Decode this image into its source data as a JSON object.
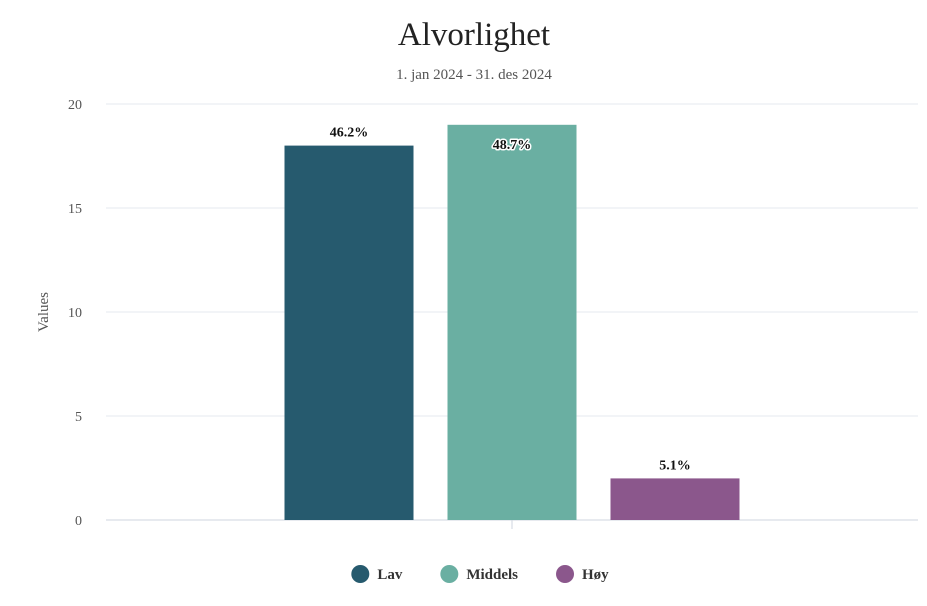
{
  "chart_data": {
    "type": "bar",
    "title": "Alvorlighet",
    "subtitle": "1. jan 2024 - 31. des 2024",
    "xlabel": "",
    "ylabel": "Values",
    "ylim": [
      0,
      20
    ],
    "yticks": [
      0,
      5,
      10,
      15,
      20
    ],
    "grid": true,
    "legend_position": "bottom",
    "series": [
      {
        "name": "Lav",
        "value": 18,
        "label": "46.2%",
        "color": "#265a6e"
      },
      {
        "name": "Middels",
        "value": 19,
        "label": "48.7%",
        "color": "#6aafa2"
      },
      {
        "name": "Høy",
        "value": 2,
        "label": "5.1%",
        "color": "#8b578c"
      }
    ]
  }
}
